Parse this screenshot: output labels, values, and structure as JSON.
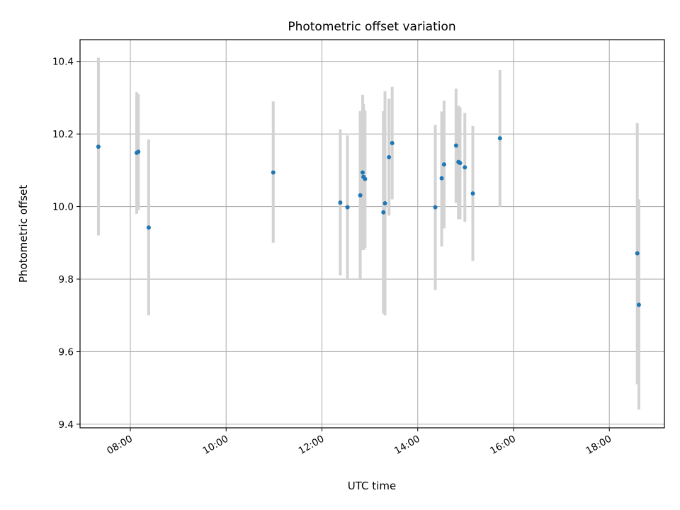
{
  "chart_data": {
    "type": "scatter",
    "title": "Photometric offset variation",
    "xlabel": "UTC time",
    "ylabel": "Photometric offset",
    "x_tick_labels": [
      "08:00",
      "10:00",
      "12:00",
      "14:00",
      "16:00",
      "18:00"
    ],
    "y_tick_labels": [
      "9.4",
      "9.6",
      "9.8",
      "10.0",
      "10.2",
      "10.4"
    ],
    "y_ticks": [
      9.4,
      9.6,
      9.8,
      10.0,
      10.2,
      10.4
    ],
    "x_ticks_hours": [
      8,
      10,
      12,
      14,
      16,
      18
    ],
    "xlim_hours": [
      6.95,
      19.15
    ],
    "ylim": [
      9.39,
      10.46
    ],
    "grid": true,
    "point_color": "#1f77b4",
    "errorbar_color": "#d3d3d3",
    "series": [
      {
        "points": [
          {
            "time": "07:20",
            "y": 10.165,
            "low": 9.92,
            "high": 10.41
          },
          {
            "time": "08:08",
            "y": 10.148,
            "low": 9.98,
            "high": 10.315
          },
          {
            "time": "08:10",
            "y": 10.151,
            "low": 9.99,
            "high": 10.31
          },
          {
            "time": "08:23",
            "y": 9.942,
            "low": 9.7,
            "high": 10.185
          },
          {
            "time": "10:59",
            "y": 10.094,
            "low": 9.9,
            "high": 10.29
          },
          {
            "time": "12:23",
            "y": 10.011,
            "low": 9.81,
            "high": 10.213
          },
          {
            "time": "12:32",
            "y": 9.998,
            "low": 9.8,
            "high": 10.196
          },
          {
            "time": "12:48",
            "y": 10.031,
            "low": 9.8,
            "high": 10.263
          },
          {
            "time": "12:51",
            "y": 10.094,
            "low": 9.88,
            "high": 10.308
          },
          {
            "time": "12:52",
            "y": 10.082,
            "low": 9.88,
            "high": 10.283
          },
          {
            "time": "12:54",
            "y": 10.076,
            "low": 9.885,
            "high": 10.265
          },
          {
            "time": "13:17",
            "y": 9.984,
            "low": 9.705,
            "high": 10.263
          },
          {
            "time": "13:19",
            "y": 10.009,
            "low": 9.7,
            "high": 10.318
          },
          {
            "time": "13:24",
            "y": 10.136,
            "low": 9.975,
            "high": 10.297
          },
          {
            "time": "13:28",
            "y": 10.175,
            "low": 10.02,
            "high": 10.33
          },
          {
            "time": "14:22",
            "y": 9.998,
            "low": 9.77,
            "high": 10.225
          },
          {
            "time": "14:30",
            "y": 10.078,
            "low": 9.89,
            "high": 10.262
          },
          {
            "time": "14:33",
            "y": 10.116,
            "low": 9.94,
            "high": 10.292
          },
          {
            "time": "14:48",
            "y": 10.168,
            "low": 10.01,
            "high": 10.325
          },
          {
            "time": "14:51",
            "y": 10.123,
            "low": 9.965,
            "high": 10.278
          },
          {
            "time": "14:53",
            "y": 10.12,
            "low": 9.965,
            "high": 10.274
          },
          {
            "time": "14:59",
            "y": 10.108,
            "low": 9.958,
            "high": 10.258
          },
          {
            "time": "15:09",
            "y": 10.036,
            "low": 9.85,
            "high": 10.222
          },
          {
            "time": "15:43",
            "y": 10.188,
            "low": 10.0,
            "high": 10.376
          },
          {
            "time": "18:35",
            "y": 9.871,
            "low": 9.51,
            "high": 10.23
          },
          {
            "time": "18:37",
            "y": 9.729,
            "low": 9.44,
            "high": 10.02
          }
        ]
      }
    ]
  }
}
